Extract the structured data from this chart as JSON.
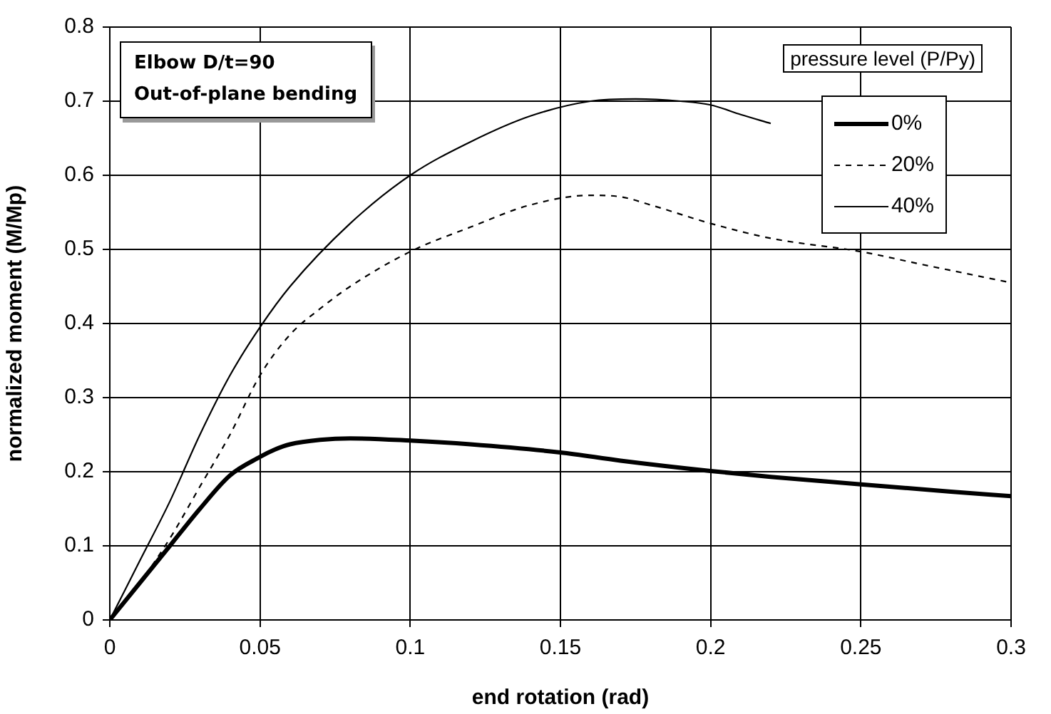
{
  "chart_data": {
    "type": "line",
    "xlabel": "end rotation (rad)",
    "ylabel": "normalized moment (M/Mp)",
    "legend_title": "pressure level (P/Py)",
    "annotations": [
      "Elbow D/t=90",
      "Out-of-plane bending"
    ],
    "xlim": [
      0,
      0.3
    ],
    "xticks": [
      0,
      0.05,
      0.1,
      0.15,
      0.2,
      0.25,
      0.3
    ],
    "ylim": [
      0,
      0.8
    ],
    "yticks": [
      0,
      0.1,
      0.2,
      0.3,
      0.4,
      0.5,
      0.6,
      0.7,
      0.8
    ],
    "grid": true,
    "legend": "top right",
    "marker": "none",
    "series": [
      {
        "name": "0%",
        "color": "#000000",
        "line_style": "solid",
        "x": [
          0,
          0.01,
          0.02,
          0.03,
          0.04,
          0.05,
          0.055,
          0.06,
          0.07,
          0.08,
          0.1,
          0.12,
          0.15,
          0.17,
          0.2,
          0.22,
          0.25,
          0.28,
          0.3
        ],
        "values": [
          0,
          0.05,
          0.1,
          0.15,
          0.195,
          0.22,
          0.23,
          0.237,
          0.243,
          0.245,
          0.242,
          0.237,
          0.226,
          0.215,
          0.201,
          0.193,
          0.183,
          0.173,
          0.167
        ]
      },
      {
        "name": "20%",
        "color": "#000000",
        "line_style": "dashed",
        "x": [
          0,
          0.01,
          0.02,
          0.03,
          0.04,
          0.05,
          0.06,
          0.07,
          0.08,
          0.1,
          0.12,
          0.14,
          0.16,
          0.17,
          0.18,
          0.2,
          0.22,
          0.25,
          0.27,
          0.3
        ],
        "values": [
          0,
          0.05,
          0.11,
          0.18,
          0.25,
          0.33,
          0.385,
          0.42,
          0.45,
          0.497,
          0.53,
          0.56,
          0.573,
          0.571,
          0.56,
          0.535,
          0.515,
          0.497,
          0.48,
          0.455
        ]
      },
      {
        "name": "40%",
        "color": "#000000",
        "line_style": "solid",
        "x": [
          0,
          0.01,
          0.02,
          0.03,
          0.04,
          0.05,
          0.06,
          0.08,
          0.1,
          0.12,
          0.14,
          0.16,
          0.175,
          0.19,
          0.2,
          0.21,
          0.22
        ],
        "values": [
          0,
          0.08,
          0.16,
          0.25,
          0.33,
          0.395,
          0.45,
          0.535,
          0.6,
          0.645,
          0.68,
          0.7,
          0.703,
          0.7,
          0.695,
          0.682,
          0.67
        ]
      }
    ]
  }
}
